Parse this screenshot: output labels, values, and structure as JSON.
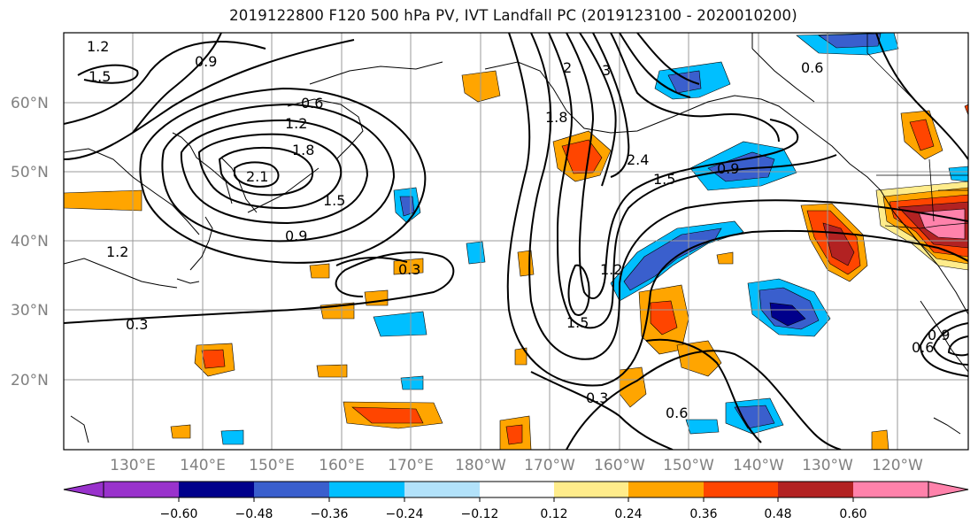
{
  "title": "2019122800 F120 500 hPa PV, IVT Landfall PC (2019123100 - 2020010200)",
  "lat_labels": [
    "60°N",
    "50°N",
    "40°N",
    "30°N",
    "20°N"
  ],
  "lon_labels": [
    "130°E",
    "140°E",
    "150°E",
    "160°E",
    "170°E",
    "180°W",
    "170°W",
    "160°W",
    "150°W",
    "140°W",
    "130°W",
    "120°W"
  ],
  "contour_labels": [
    "1.2",
    "1.5",
    "0.9",
    "0.6",
    "1.2",
    "1.8",
    "2.1",
    "1.5",
    "0.9",
    "0.3",
    "0.3",
    "2",
    "3",
    "1.8",
    "2.4",
    "1.5",
    "0.9",
    "1.2",
    "1.5",
    "0.6",
    "0.3",
    "0.6",
    "0.6",
    "0.9",
    "1.2"
  ],
  "colorbar": {
    "ticks": [
      "−0.60",
      "−0.48",
      "−0.36",
      "−0.24",
      "−0.12",
      "0.12",
      "0.24",
      "0.36",
      "0.48",
      "0.60"
    ],
    "colors": [
      "#9932cc",
      "#00008b",
      "#3a5fcd",
      "#00bfff",
      "#b2e2fa",
      "#ffffff",
      "#ffec8b",
      "#ffa500",
      "#ff4500",
      "#b22222",
      "#ff82ab"
    ]
  }
}
